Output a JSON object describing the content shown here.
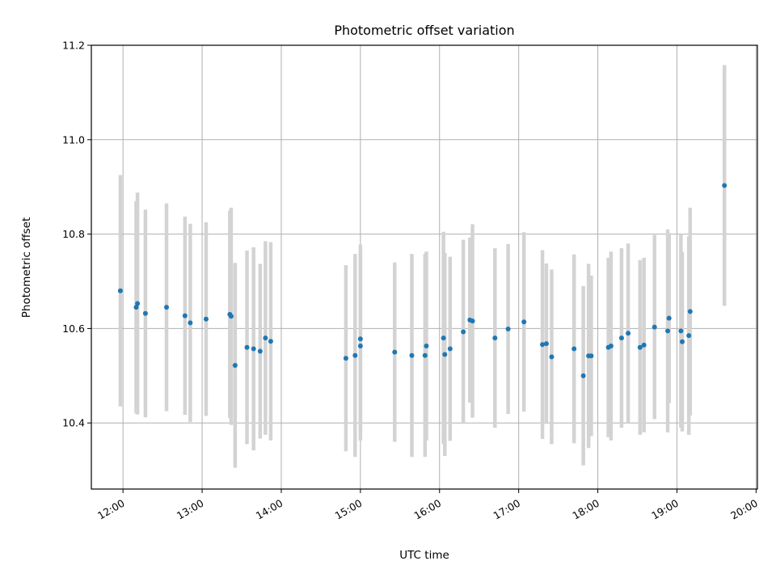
{
  "chart_data": {
    "type": "scatter",
    "title": "Photometric offset variation",
    "xlabel": "UTC time",
    "ylabel": "Photometric offset",
    "xlim": [
      "11:36",
      "20:01"
    ],
    "ylim": [
      10.26,
      11.2
    ],
    "xticks": [
      "12:00",
      "13:00",
      "14:00",
      "15:00",
      "16:00",
      "17:00",
      "18:00",
      "19:00",
      "20:00"
    ],
    "yticks": [
      10.4,
      10.6,
      10.8,
      11.0,
      11.2
    ],
    "ytick_labels": [
      "10.4",
      "10.6",
      "10.8",
      "11.0",
      "11.2"
    ],
    "grid": true,
    "colors": {
      "points": "#1f77b4",
      "error_bars": "#d3d3d3"
    },
    "series": [
      {
        "x": [
          "11:58",
          "12:10",
          "12:11",
          "12:17",
          "12:33",
          "12:47",
          "12:51",
          "13:03",
          "13:21",
          "13:22",
          "13:25",
          "13:34",
          "13:39",
          "13:44",
          "13:48",
          "13:52",
          "14:49",
          "14:56",
          "15:00",
          "15:00",
          "15:26",
          "15:39",
          "15:49",
          "15:50",
          "16:03",
          "16:04",
          "16:08",
          "16:18",
          "16:23",
          "16:25",
          "16:42",
          "16:52",
          "17:04",
          "17:18",
          "17:21",
          "17:25",
          "17:42",
          "17:49",
          "17:53",
          "17:55",
          "18:08",
          "18:10",
          "18:18",
          "18:23",
          "18:32",
          "18:35",
          "18:43",
          "18:53",
          "18:54",
          "19:03",
          "19:04",
          "19:09",
          "19:10",
          "19:36"
        ],
        "y": [
          10.68,
          10.645,
          10.653,
          10.632,
          10.645,
          10.627,
          10.612,
          10.62,
          10.63,
          10.626,
          10.522,
          10.56,
          10.557,
          10.552,
          10.58,
          10.573,
          10.537,
          10.543,
          10.578,
          10.563,
          10.55,
          10.543,
          10.543,
          10.563,
          10.58,
          10.545,
          10.557,
          10.593,
          10.618,
          10.616,
          10.58,
          10.599,
          10.614,
          10.566,
          10.568,
          10.54,
          10.557,
          10.5,
          10.542,
          10.542,
          10.56,
          10.563,
          10.58,
          10.59,
          10.56,
          10.565,
          10.603,
          10.595,
          10.622,
          10.595,
          10.572,
          10.585,
          10.636,
          10.903
        ],
        "y_error": [
          0.245,
          0.225,
          0.235,
          0.22,
          0.22,
          0.21,
          0.21,
          0.205,
          0.22,
          0.23,
          0.217,
          0.205,
          0.215,
          0.185,
          0.205,
          0.21,
          0.197,
          0.215,
          0.2,
          0.2,
          0.19,
          0.215,
          0.215,
          0.2,
          0.225,
          0.215,
          0.195,
          0.195,
          0.175,
          0.205,
          0.19,
          0.18,
          0.19,
          0.2,
          0.17,
          0.185,
          0.2,
          0.19,
          0.195,
          0.17,
          0.19,
          0.2,
          0.19,
          0.19,
          0.185,
          0.185,
          0.195,
          0.215,
          0.18,
          0.205,
          0.19,
          0.21,
          0.22,
          0.255
        ]
      }
    ]
  }
}
